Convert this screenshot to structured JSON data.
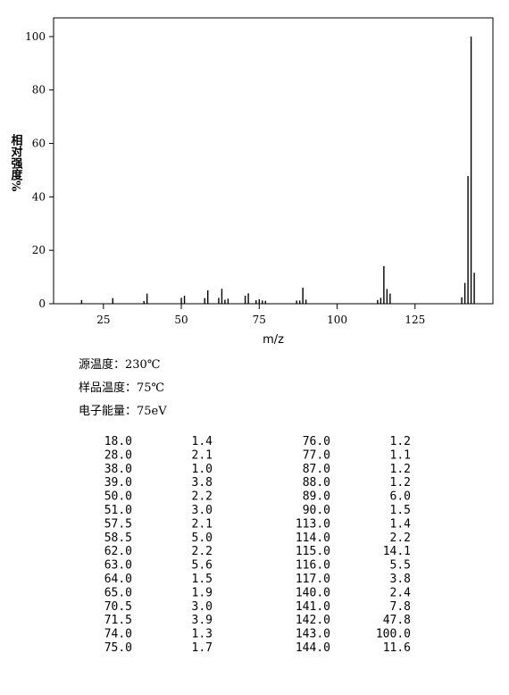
{
  "chart_data": {
    "type": "bar",
    "x_label": "m/z",
    "y_label": "相对强度%",
    "x": [
      18,
      28,
      38,
      39,
      50,
      51,
      57.5,
      58.5,
      62,
      63,
      64,
      65,
      70.5,
      71.5,
      74,
      75,
      76,
      77,
      87,
      88,
      89,
      90,
      113,
      114,
      115,
      116,
      117,
      140,
      141,
      142,
      143,
      144
    ],
    "values": [
      1.4,
      2.1,
      1.0,
      3.8,
      2.2,
      3.0,
      2.1,
      5.0,
      2.2,
      5.6,
      1.5,
      1.9,
      3.0,
      3.9,
      1.3,
      1.7,
      1.2,
      1.1,
      1.2,
      1.2,
      6.0,
      1.5,
      1.4,
      2.2,
      14.1,
      5.5,
      3.8,
      2.4,
      7.8,
      47.8,
      100.0,
      11.6
    ],
    "color": "#000000",
    "xlim": [
      9,
      150
    ],
    "xticks": [
      25,
      50,
      75,
      100,
      125
    ],
    "ylim": [
      0,
      107
    ],
    "yticks": [
      0,
      20,
      40,
      60,
      80,
      100
    ]
  },
  "info": [
    "源温度：230℃",
    "样品温度：75℃",
    "电子能量：75eV"
  ],
  "table": {
    "rows": [
      [
        "18.0",
        "1.4",
        "76.0",
        "1.2"
      ],
      [
        "28.0",
        "2.1",
        "77.0",
        "1.1"
      ],
      [
        "38.0",
        "1.0",
        "87.0",
        "1.2"
      ],
      [
        "39.0",
        "3.8",
        "88.0",
        "1.2"
      ],
      [
        "50.0",
        "2.2",
        "89.0",
        "6.0"
      ],
      [
        "51.0",
        "3.0",
        "90.0",
        "1.5"
      ],
      [
        "57.5",
        "2.1",
        "113.0",
        "1.4"
      ],
      [
        "58.5",
        "5.0",
        "114.0",
        "2.2"
      ],
      [
        "62.0",
        "2.2",
        "115.0",
        "14.1"
      ],
      [
        "63.0",
        "5.6",
        "116.0",
        "5.5"
      ],
      [
        "64.0",
        "1.5",
        "117.0",
        "3.8"
      ],
      [
        "65.0",
        "1.9",
        "140.0",
        "2.4"
      ],
      [
        "70.5",
        "3.0",
        "141.0",
        "7.8"
      ],
      [
        "71.5",
        "3.9",
        "142.0",
        "47.8"
      ],
      [
        "74.0",
        "1.3",
        "143.0",
        "100.0"
      ],
      [
        "75.0",
        "1.7",
        "144.0",
        "11.6"
      ]
    ]
  }
}
